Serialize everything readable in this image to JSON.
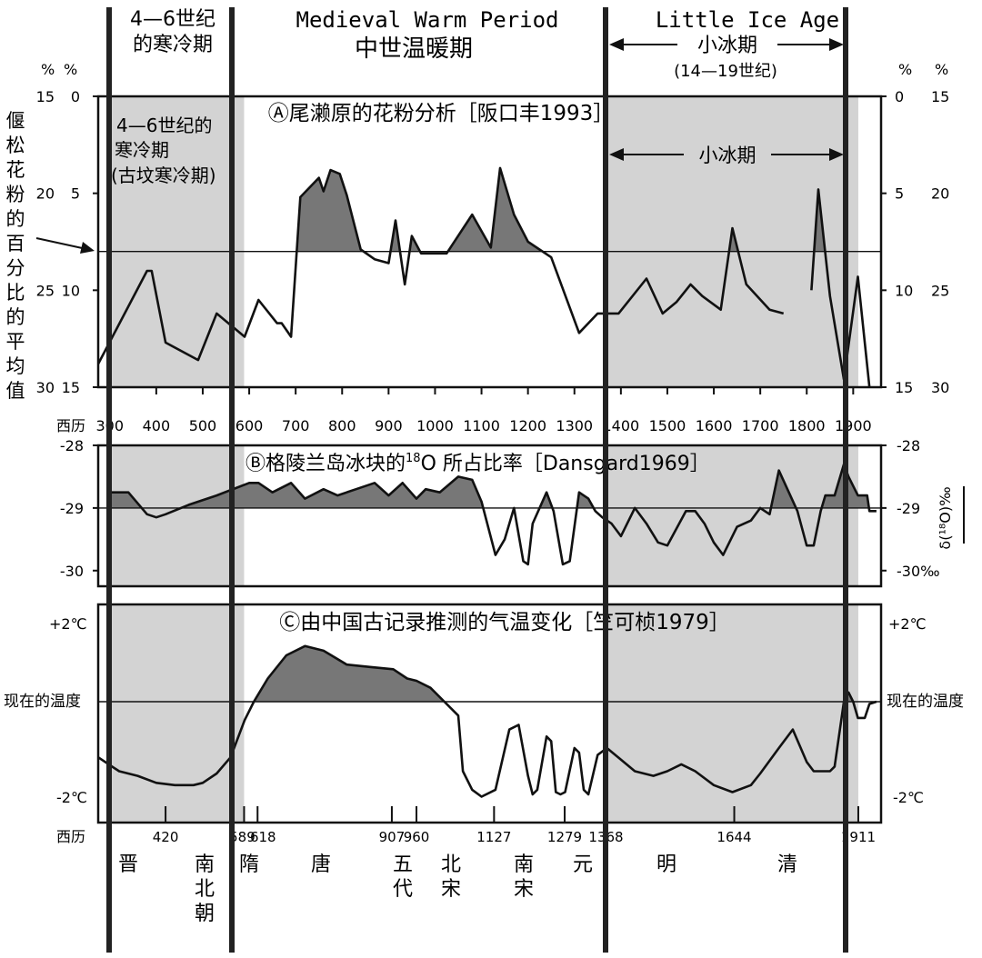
{
  "header": {
    "left_period_line1": "4—6世纪",
    "left_period_line2": "的寒冷期",
    "medieval_en": "Medieval Warm Period",
    "medieval_zh": "中世温暖期",
    "lia_en": "Little Ice Age",
    "lia_zh": "小冰期",
    "lia_range": "(14—19世纪)"
  },
  "colors": {
    "shade": "#d3d3d3",
    "fill_above": "#777777",
    "line": "#111111",
    "bar": "#222222"
  },
  "chart_data": [
    {
      "type": "line",
      "panel": "A",
      "title": "Ⓐ尾濑原的花粉分析［阪口丰1993］",
      "left_annotation": [
        "4—6世纪的",
        "寒冷期",
        "(古坟寒冷期)"
      ],
      "right_annotation": "小冰期",
      "vertical_note": "偃松花粉的百分比的平均值",
      "axis_units_left": [
        "%",
        "%"
      ],
      "axis_units_right": [
        "%",
        "%"
      ],
      "left_outer_ticks": [
        "15",
        "20",
        "25",
        "30"
      ],
      "left_inner_ticks": [
        "0",
        "5",
        "10",
        "15"
      ],
      "right_inner_ticks": [
        "0",
        "5",
        "10",
        "15"
      ],
      "right_outer_ticks": [
        "15",
        "20",
        "25",
        "30"
      ],
      "x_axis_label": "西历",
      "x_ticks": [
        "300",
        "400",
        "500",
        "600",
        "700",
        "800",
        "900",
        "1000",
        "1100",
        "1200",
        "1300",
        "1400",
        "1500",
        "1600",
        "1700",
        "1800",
        "1900"
      ],
      "mean_line": 8.0,
      "ylim": [
        0,
        15
      ],
      "series": [
        {
          "x": [
            275,
            380,
            390,
            420,
            490,
            530,
            590,
            620,
            660,
            670,
            690,
            710,
            750,
            760,
            775,
            795,
            810,
            840,
            870,
            900,
            915,
            935,
            950,
            970,
            990,
            1025,
            1080,
            1120,
            1140,
            1170,
            1200,
            1250,
            1310,
            1350,
            1395,
            1455,
            1490,
            1520,
            1550,
            1575,
            1615,
            1640,
            1670,
            1720,
            1750
          ],
          "y": [
            13.8,
            9.0,
            9.0,
            12.7,
            13.6,
            11.2,
            12.4,
            10.5,
            11.7,
            11.7,
            12.4,
            5.2,
            4.2,
            4.9,
            3.8,
            4.0,
            5.1,
            7.9,
            8.4,
            8.6,
            6.4,
            9.7,
            7.2,
            8.1,
            8.1,
            8.1,
            6.1,
            7.8,
            3.7,
            6.1,
            7.5,
            8.3,
            12.2,
            11.2,
            11.2,
            9.4,
            11.2,
            10.6,
            9.7,
            10.3,
            11.0,
            6.8,
            9.7,
            11.0,
            11.2
          ]
        },
        {
          "x": [
            1810,
            1825,
            1850,
            1880
          ],
          "y": [
            10.0,
            4.8,
            10.3,
            14.6
          ]
        },
        {
          "x": [
            1880,
            1910,
            1935
          ],
          "y": [
            14.6,
            9.3,
            15.0
          ]
        }
      ]
    },
    {
      "type": "area",
      "panel": "B",
      "title": "Ⓑ格陵兰岛冰块的¹⁸O 所占比率［Dansgard1969］",
      "title_main": "Ⓑ格陵兰岛冰块的",
      "title_sup": "18",
      "title_tail": "O 所占比率［Dansgard1969］",
      "ylabel": "δ(¹⁸O)‰",
      "left_ticks": [
        "-28",
        "-29",
        "-30"
      ],
      "right_ticks": [
        "-28",
        "-29",
        "-30‰"
      ],
      "reference": -29.0,
      "ylim": [
        -30.25,
        -28.0
      ],
      "x": [
        300,
        340,
        380,
        400,
        420,
        470,
        530,
        600,
        620,
        650,
        690,
        720,
        760,
        790,
        830,
        870,
        900,
        930,
        960,
        980,
        1010,
        1050,
        1080,
        1100,
        1130,
        1150,
        1170,
        1190,
        1200,
        1210,
        1240,
        1255,
        1275,
        1290,
        1310,
        1330,
        1345,
        1360,
        1380,
        1400,
        1430,
        1455,
        1480,
        1500,
        1540,
        1560,
        1580,
        1600,
        1620,
        1650,
        1680,
        1700,
        1720,
        1740,
        1780,
        1800,
        1815,
        1830,
        1840,
        1860,
        1880,
        1890,
        1910,
        1930,
        1935,
        1950
      ],
      "y": [
        -28.75,
        -28.75,
        -29.1,
        -29.15,
        -29.1,
        -28.95,
        -28.8,
        -28.6,
        -28.6,
        -28.75,
        -28.6,
        -28.85,
        -28.7,
        -28.8,
        -28.7,
        -28.6,
        -28.8,
        -28.6,
        -28.85,
        -28.7,
        -28.75,
        -28.5,
        -28.55,
        -28.9,
        -29.75,
        -29.5,
        -29.0,
        -29.85,
        -29.9,
        -29.25,
        -28.75,
        -29.05,
        -29.9,
        -29.85,
        -28.75,
        -28.85,
        -29.05,
        -29.15,
        -29.25,
        -29.45,
        -29.0,
        -29.25,
        -29.55,
        -29.6,
        -29.05,
        -29.05,
        -29.25,
        -29.55,
        -29.75,
        -29.3,
        -29.2,
        -29.0,
        -29.1,
        -28.4,
        -29.05,
        -29.6,
        -29.6,
        -29.05,
        -28.8,
        -28.8,
        -28.3,
        -28.5,
        -28.8,
        -28.8,
        -29.05,
        -29.05
      ]
    },
    {
      "type": "area",
      "panel": "C",
      "title": "Ⓒ由中国古记录推测的气温变化［竺可桢1979］",
      "left_top_label": "+2℃",
      "left_mid_label": "现在的温度",
      "left_bottom_label": "-2℃",
      "right_top_label": "+2℃",
      "right_mid_label": "现在的温度",
      "right_bottom_label": "-2℃",
      "reference": 0,
      "ylim": [
        -2.4,
        2.0
      ],
      "x_axis_label": "西历",
      "x_ticks": [
        "420",
        "589",
        "618",
        "907",
        "960",
        "1127",
        "1279",
        "1368",
        "1644",
        "1911"
      ],
      "dynasties": [
        "晋",
        "南北朝",
        "隋",
        "唐",
        "五代",
        "北宋",
        "南宋",
        "元",
        "明",
        "清"
      ],
      "x": [
        275,
        320,
        360,
        400,
        440,
        480,
        500,
        530,
        560,
        590,
        610,
        640,
        680,
        720,
        760,
        810,
        860,
        910,
        940,
        960,
        990,
        1020,
        1050,
        1060,
        1080,
        1100,
        1130,
        1160,
        1180,
        1200,
        1210,
        1220,
        1240,
        1250,
        1260,
        1270,
        1280,
        1300,
        1310,
        1320,
        1330,
        1350,
        1370,
        1400,
        1430,
        1470,
        1500,
        1530,
        1560,
        1600,
        1640,
        1680,
        1700,
        1740,
        1770,
        1800,
        1815,
        1830,
        1850,
        1860,
        1880,
        1890,
        1900,
        1910,
        1925,
        1935,
        1950
      ],
      "y": [
        -1.2,
        -1.5,
        -1.6,
        -1.75,
        -1.8,
        -1.8,
        -1.75,
        -1.55,
        -1.2,
        -0.4,
        0.0,
        0.5,
        1.0,
        1.2,
        1.1,
        0.8,
        0.75,
        0.7,
        0.5,
        0.45,
        0.3,
        0.0,
        -0.3,
        -1.5,
        -1.9,
        -2.05,
        -1.9,
        -0.6,
        -0.5,
        -1.6,
        -2.0,
        -1.9,
        -0.75,
        -0.85,
        -1.95,
        -2.0,
        -1.95,
        -1.0,
        -1.1,
        -1.9,
        -2.0,
        -1.15,
        -1.0,
        -1.25,
        -1.5,
        -1.6,
        -1.5,
        -1.35,
        -1.5,
        -1.8,
        -1.95,
        -1.8,
        -1.55,
        -1.0,
        -0.6,
        -1.3,
        -1.5,
        -1.5,
        -1.5,
        -1.4,
        0.0,
        0.2,
        0.0,
        -0.35,
        -0.35,
        -0.05,
        0.0
      ]
    }
  ]
}
